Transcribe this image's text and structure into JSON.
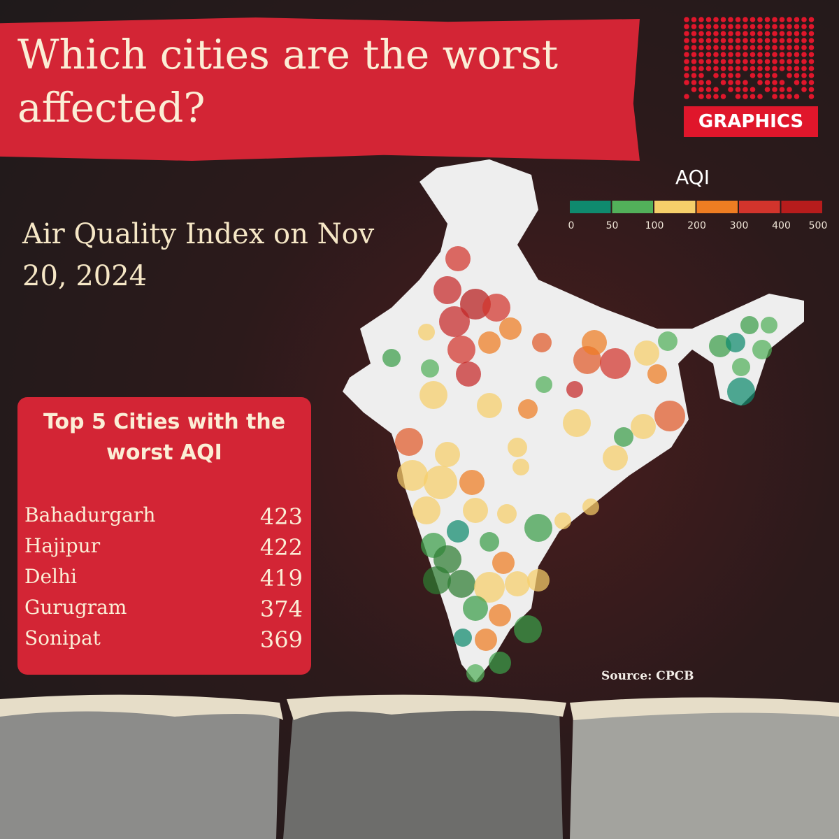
{
  "header": {
    "title": "Which cities are the worst affected?",
    "logo": "GRAPHICS"
  },
  "subtitle": "Air Quality Index on Nov 20, 2024",
  "legend": {
    "title": "AQI",
    "colors": [
      "#0f8a6e",
      "#52b05a",
      "#f6cf6a",
      "#ee7d22",
      "#d2342c",
      "#b71c1c"
    ],
    "ticks": [
      0,
      50,
      100,
      200,
      300,
      400,
      500
    ]
  },
  "top5": {
    "title": "Top 5 Cities with the worst AQI",
    "rows": [
      [
        "Bahadurgarh",
        423
      ],
      [
        "Hajipur",
        422
      ],
      [
        "Delhi",
        419
      ],
      [
        "Gurugram",
        374
      ],
      [
        "Sonipat",
        369
      ]
    ]
  },
  "source": "Source: CPCB"
}
